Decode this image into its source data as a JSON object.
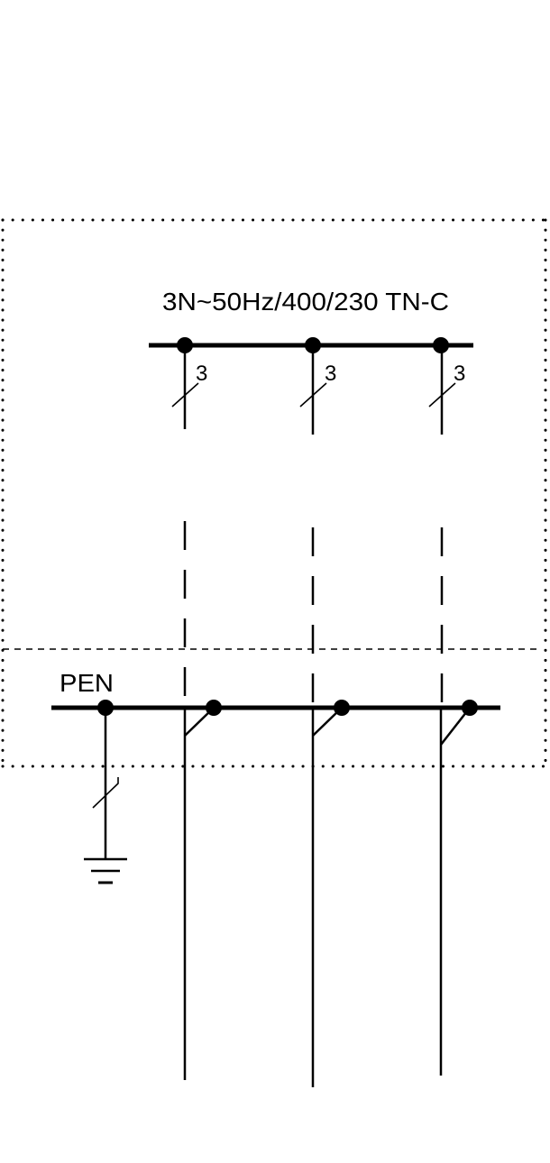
{
  "supply_label": "3N~50Hz/400/230 TN-C",
  "pen_label": "PEN",
  "conductor_counts": [
    "3",
    "3",
    "3"
  ],
  "colors": {
    "line": "#000000",
    "background": "#ffffff"
  },
  "icons": {
    "earth": "ground-symbol-icon",
    "junction": "junction-dot-icon"
  }
}
